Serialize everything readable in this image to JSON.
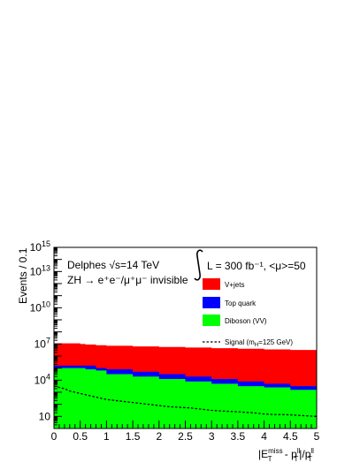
{
  "chart_data": {
    "type": "area",
    "stacked": true,
    "log_y": true,
    "ylabel": "Events / 0.1",
    "xlabel": "|E_T^miss - p_T^ll|/p_T^ll",
    "xlim": [
      0,
      5
    ],
    "ylim_log10": [
      0,
      15
    ],
    "x_ticks": [
      "0",
      "0.5",
      "1",
      "1.5",
      "2",
      "2.5",
      "3",
      "3.5",
      "4",
      "4.5",
      "5"
    ],
    "y_ticks": [
      {
        "label": "10",
        "exp": ""
      },
      {
        "label": "10",
        "exp": "4"
      },
      {
        "label": "10",
        "exp": "7"
      },
      {
        "label": "10",
        "exp": "10"
      },
      {
        "label": "10",
        "exp": "13"
      },
      {
        "label": "10",
        "exp": "15"
      }
    ],
    "annotations": {
      "line1": "Delphes √s=14 TeV",
      "line2": "ZH → e⁺e⁻/μ⁺μ⁻ invisible",
      "lumi": "L = 300 fb⁻¹, <μ>=50"
    },
    "legend_position": "top-right",
    "x_edges": [
      0,
      0.5,
      0.6,
      0.8,
      1.0,
      1.5,
      2.0,
      2.5,
      3.0,
      3.5,
      4.0,
      4.5,
      5.0
    ],
    "series": [
      {
        "name": "Diboson (VV)",
        "color": "#00ff00",
        "legend": "Diboson (VV)",
        "log10_top": [
          5.0,
          5.0,
          4.9,
          4.8,
          4.5,
          4.3,
          4.1,
          3.9,
          3.7,
          3.5,
          3.4,
          3.2
        ]
      },
      {
        "name": "Top quark",
        "color": "#0000ff",
        "legend": "Top quark",
        "log10_top": [
          5.2,
          5.2,
          5.2,
          5.0,
          4.9,
          4.7,
          4.5,
          4.3,
          4.1,
          3.9,
          3.7,
          3.5
        ]
      },
      {
        "name": "V+jets",
        "color": "#ff0000",
        "legend": "V+jets",
        "log10_top": [
          7.05,
          7.0,
          6.95,
          6.9,
          6.85,
          6.8,
          6.75,
          6.7,
          6.65,
          6.6,
          6.55,
          6.5
        ]
      }
    ],
    "signal": {
      "name": "Signal",
      "legend": "Signal (m",
      "legend_sub": "H",
      "legend_tail": "=125 GeV)",
      "x": [
        0.0,
        0.1,
        0.2,
        0.3,
        0.4,
        0.5,
        0.6,
        0.7,
        0.8,
        0.9,
        1.0,
        1.2,
        1.4,
        1.6,
        1.8,
        2.0,
        2.2,
        2.4,
        2.6,
        2.8,
        3.0,
        3.2,
        3.4,
        3.6,
        3.8,
        4.0,
        4.2,
        4.4,
        4.6,
        4.8,
        5.0
      ],
      "log10_y": [
        3.5,
        3.4,
        3.3,
        3.1,
        3.0,
        2.9,
        2.8,
        2.7,
        2.6,
        2.5,
        2.4,
        2.3,
        2.2,
        2.1,
        2.0,
        1.9,
        1.8,
        1.75,
        1.7,
        1.6,
        1.5,
        1.45,
        1.4,
        1.35,
        1.3,
        1.2,
        1.15,
        1.15,
        1.1,
        1.05,
        1.0
      ]
    }
  }
}
